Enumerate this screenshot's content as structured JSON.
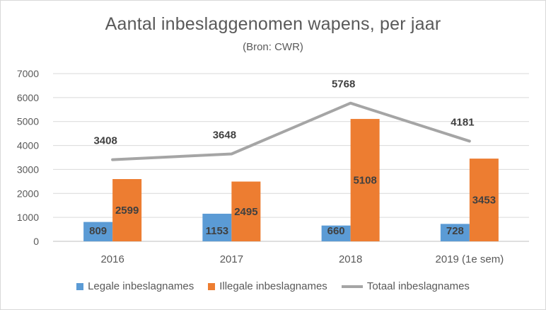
{
  "chart_data": {
    "type": "bar",
    "title": "Aantal inbeslaggenomen wapens, per jaar",
    "subtitle": "(Bron: CWR)",
    "xlabel": "",
    "ylabel": "",
    "ylim": [
      0,
      7000
    ],
    "yticks": [
      0,
      1000,
      2000,
      3000,
      4000,
      5000,
      6000,
      7000
    ],
    "grid": true,
    "legend_position": "bottom",
    "categories": [
      "2016",
      "2017",
      "2018",
      "2019 (1e sem)"
    ],
    "series": [
      {
        "name": "Legale inbeslagnames",
        "type": "bar",
        "color": "#5b9bd5",
        "values": [
          809,
          1153,
          660,
          728
        ]
      },
      {
        "name": "Illegale inbeslagnames",
        "type": "bar",
        "color": "#ed7d31",
        "values": [
          2599,
          2495,
          5108,
          3453
        ]
      },
      {
        "name": "Totaal inbeslagnames",
        "type": "line",
        "color": "#a5a5a5",
        "values": [
          3408,
          3648,
          5768,
          4181
        ]
      }
    ]
  }
}
